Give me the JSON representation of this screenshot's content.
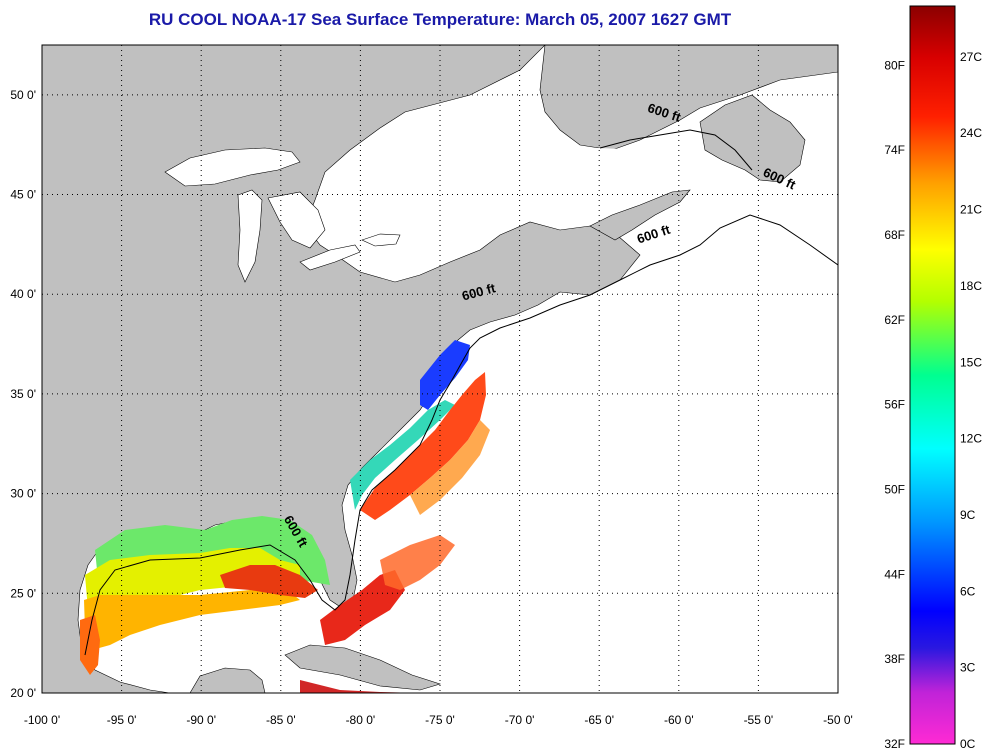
{
  "title": "RU COOL  NOAA-17  Sea Surface Temperature:  March 05, 2007 1627 GMT",
  "map": {
    "lon_range": [
      -100,
      -50
    ],
    "lat_range": [
      20,
      52.5
    ],
    "lon_ticks": [
      -100,
      -95,
      -90,
      -85,
      -80,
      -75,
      -70,
      -65,
      -60,
      -55,
      -50
    ],
    "lon_labels": [
      "-100 0'",
      "-95 0'",
      "-90 0'",
      "-85 0'",
      "-80 0'",
      "-75 0'",
      "-70 0'",
      "-65 0'",
      "-60 0'",
      "-55 0'",
      "-50 0'"
    ],
    "lat_ticks": [
      20,
      25,
      30,
      35,
      40,
      45,
      50
    ],
    "lat_labels": [
      "20 0'",
      "25 0'",
      "30 0'",
      "35 0'",
      "40 0'",
      "45 0'",
      "50 0'"
    ],
    "grid": "dotted",
    "land_color": "#c0c0c0",
    "no_data_color": "#ffffff",
    "contour_labels": [
      {
        "text": "600 ft",
        "lon": -61,
        "lat": 48.9
      },
      {
        "text": "600 ft",
        "lon": -53.8,
        "lat": 45.6
      },
      {
        "text": "600 ft",
        "lon": -61.5,
        "lat": 42.8
      },
      {
        "text": "600 ft",
        "lon": -72.5,
        "lat": 39.9
      },
      {
        "text": "600 ft",
        "lon": -84.3,
        "lat": 28.0
      }
    ]
  },
  "colorbar": {
    "fahrenheit_labels": [
      "32F",
      "38F",
      "44F",
      "50F",
      "56F",
      "62F",
      "68F",
      "74F",
      "80F"
    ],
    "celsius_labels": [
      "0C",
      "3C",
      "6C",
      "9C",
      "12C",
      "15C",
      "18C",
      "21C",
      "24C",
      "27C"
    ],
    "range_c": [
      0,
      29
    ],
    "colors": [
      "#ff2ad4",
      "#7a22d8",
      "#0000ff",
      "#0096ff",
      "#00ffff",
      "#00ff90",
      "#b4ff00",
      "#ffff00",
      "#ffa000",
      "#ff0000",
      "#8b0000"
    ]
  }
}
